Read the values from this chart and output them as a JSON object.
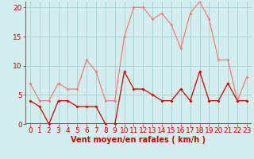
{
  "x": [
    0,
    1,
    2,
    3,
    4,
    5,
    6,
    7,
    8,
    9,
    10,
    11,
    12,
    13,
    14,
    15,
    16,
    17,
    18,
    19,
    20,
    21,
    22,
    23
  ],
  "wind_mean": [
    4,
    3,
    0,
    4,
    4,
    3,
    3,
    3,
    0,
    0,
    9,
    6,
    6,
    5,
    4,
    4,
    6,
    4,
    9,
    4,
    4,
    7,
    4,
    4
  ],
  "wind_gust": [
    7,
    4,
    4,
    7,
    6,
    6,
    11,
    9,
    4,
    4,
    15,
    20,
    20,
    18,
    19,
    17,
    13,
    19,
    21,
    18,
    11,
    11,
    4,
    8
  ],
  "bg_color": "#d4eeed",
  "grid_color": "#aad4d4",
  "mean_color": "#cc0000",
  "gust_color": "#f08080",
  "xlabel": "Vent moyen/en rafales ( km/h )",
  "ylim": [
    0,
    21
  ],
  "yticks": [
    0,
    5,
    10,
    15,
    20
  ],
  "xticks": [
    0,
    1,
    2,
    3,
    4,
    5,
    6,
    7,
    8,
    9,
    10,
    11,
    12,
    13,
    14,
    15,
    16,
    17,
    18,
    19,
    20,
    21,
    22,
    23
  ],
  "xlabel_fontsize": 7,
  "tick_fontsize": 6.5
}
